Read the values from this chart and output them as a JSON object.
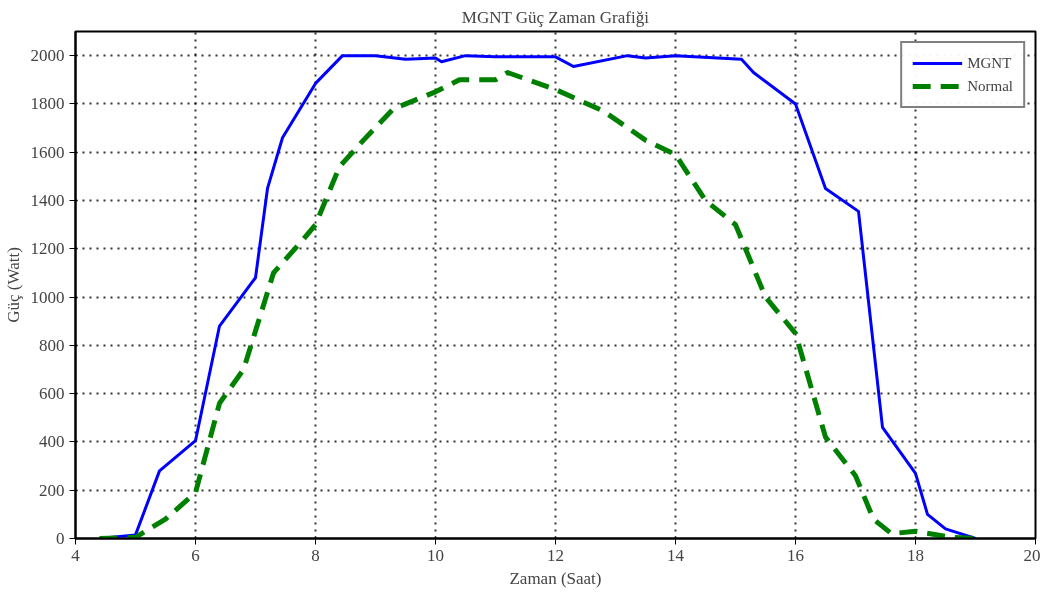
{
  "chart_data": {
    "type": "line",
    "title": "MGNT Güç Zaman Grafiği",
    "xlabel": "Zaman (Saat)",
    "ylabel": "Güç (Watt)",
    "xlim": [
      4,
      20
    ],
    "xticks": [
      4,
      6,
      8,
      10,
      12,
      14,
      16,
      18,
      20
    ],
    "ylim": [
      0,
      2100
    ],
    "yticks": [
      0,
      200,
      400,
      600,
      800,
      1000,
      1200,
      1400,
      1600,
      1800,
      2000
    ],
    "grid": true,
    "legend": "top right",
    "series": [
      {
        "name": "MGNT",
        "color": "#0000ff",
        "line_style": "solid",
        "x": [
          4.4,
          5.0,
          5.4,
          6.0,
          6.4,
          7.0,
          7.2,
          7.45,
          8.0,
          8.45,
          9.0,
          9.5,
          10.0,
          10.1,
          10.5,
          11.0,
          12.0,
          12.3,
          13.2,
          13.5,
          14.0,
          15.1,
          15.3,
          16.0,
          16.5,
          17.05,
          17.45,
          18.0,
          18.2,
          18.5,
          19.0
        ],
        "values": [
          0,
          15,
          280,
          405,
          880,
          1080,
          1450,
          1660,
          1885,
          2000,
          2000,
          1985,
          1990,
          1975,
          2000,
          1995,
          1995,
          1955,
          2000,
          1990,
          2000,
          1985,
          1930,
          1800,
          1450,
          1355,
          460,
          270,
          100,
          40,
          0
        ]
      },
      {
        "name": "Normal",
        "color": "#008000",
        "line_style": "dashed",
        "x": [
          4.4,
          5.0,
          5.5,
          6.0,
          6.4,
          6.8,
          7.3,
          7.8,
          8.0,
          8.4,
          8.8,
          9.3,
          9.8,
          10.0,
          10.4,
          11.0,
          11.2,
          12.0,
          12.8,
          13.5,
          14.0,
          14.5,
          15.0,
          15.5,
          16.0,
          16.5,
          17.0,
          17.3,
          17.6,
          18.0,
          18.6,
          19.0
        ],
        "values": [
          0,
          5,
          80,
          190,
          560,
          700,
          1100,
          1240,
          1300,
          1540,
          1650,
          1780,
          1830,
          1850,
          1900,
          1900,
          1930,
          1860,
          1770,
          1650,
          1590,
          1400,
          1300,
          1000,
          850,
          420,
          260,
          80,
          20,
          30,
          5,
          0
        ]
      }
    ]
  }
}
